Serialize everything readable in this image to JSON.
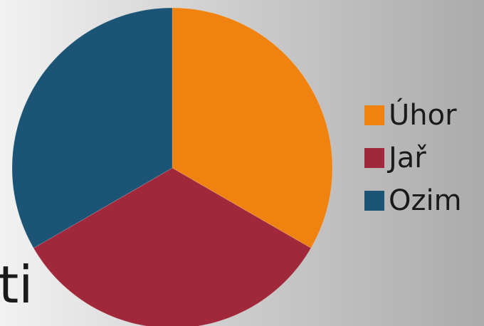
{
  "background_text": "ti",
  "chart_data": {
    "type": "pie",
    "categories": [
      "Úhor",
      "Jař",
      "Ozim"
    ],
    "values": [
      33.3,
      33.3,
      33.3
    ],
    "colors": [
      "#f0820f",
      "#a1283b",
      "#1b5474"
    ],
    "title": "",
    "legend": "right",
    "start_angle_deg": 0,
    "direction": "clockwise"
  }
}
